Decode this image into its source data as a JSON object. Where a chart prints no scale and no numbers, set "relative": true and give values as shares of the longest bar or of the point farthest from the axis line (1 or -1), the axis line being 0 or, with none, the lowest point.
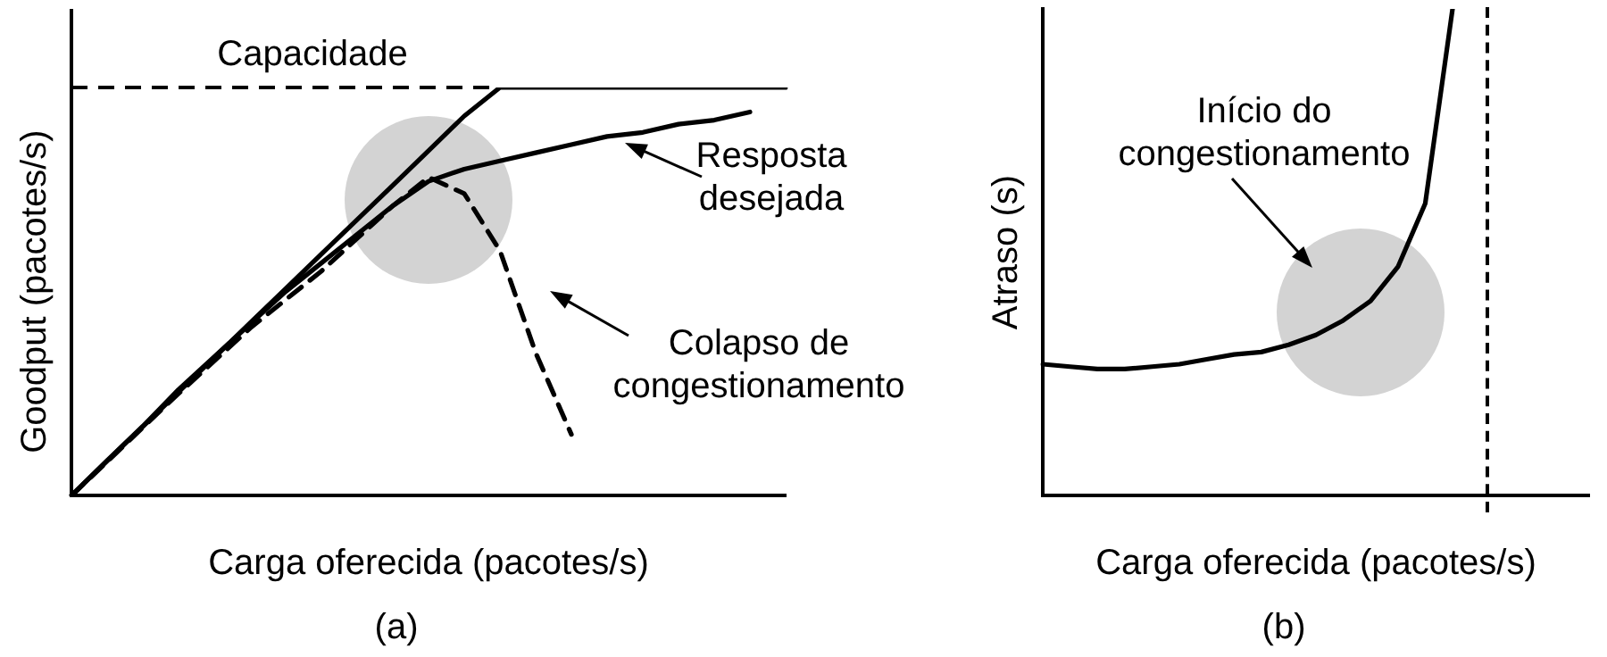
{
  "chart_data": [
    {
      "type": "line",
      "title": "(a)",
      "xlabel": "Carga oferecida (pacotes/s)",
      "ylabel": "Goodput (pacotes/s)",
      "relative": true,
      "grid": false,
      "legend": false,
      "marker": "none",
      "categories": [
        null,
        null,
        null,
        null,
        null,
        null,
        null,
        null,
        null,
        null,
        null,
        null,
        null,
        null,
        null,
        null,
        null,
        null,
        null,
        null,
        null
      ],
      "series": [
        {
          "color": "#000000",
          "values": [
            0,
            0.085,
            0.169,
            0.254,
            0.338,
            0.423,
            0.507,
            0.592,
            0.676,
            0.76,
            0.845,
            0.93,
            1,
            1,
            1,
            1,
            1,
            1,
            1,
            1,
            1
          ]
        },
        {
          "color": "#000000",
          "values": [
            0,
            0.086,
            0.17,
            0.26,
            0.34,
            0.42,
            0.5,
            0.57,
            0.64,
            0.71,
            0.77,
            0.8,
            0.82,
            0.84,
            0.86,
            0.88,
            0.89,
            0.91,
            0.92,
            0.94,
            null
          ]
        },
        {
          "color": "#000000",
          "line_style": "dashed",
          "values": [
            0,
            0.083,
            0.167,
            0.25,
            0.33,
            0.41,
            0.48,
            0.55,
            0.63,
            0.71,
            0.78,
            0.74,
            0.6,
            0.35,
            0.15,
            null,
            null,
            null,
            null,
            null,
            null
          ]
        }
      ],
      "ref_lines": [
        {
          "axis": "y",
          "value": 1,
          "label": "Capacidade",
          "line_style": "dashed"
        }
      ],
      "annotations": [
        "Resposta\ndesejada",
        "Colapso de\ncongestionamento"
      ]
    },
    {
      "type": "line",
      "title": "(b)",
      "xlabel": "Carga oferecida (pacotes/s)",
      "ylabel": "Atraso (s)",
      "relative": true,
      "grid": false,
      "legend": false,
      "marker": "none",
      "categories": [
        null,
        null,
        null,
        null,
        null,
        null,
        null,
        null,
        null,
        null,
        null,
        null,
        null,
        null,
        null,
        null,
        null,
        null,
        null,
        null,
        null
      ],
      "series": [
        {
          "color": "#000000",
          "values": [
            0.27,
            0.265,
            0.26,
            0.26,
            0.265,
            0.27,
            0.28,
            0.29,
            0.295,
            0.31,
            0.33,
            0.36,
            0.4,
            0.47,
            0.6,
            1,
            null,
            null,
            null,
            null,
            null
          ]
        }
      ],
      "annotations": [
        "Início do\ncongestionamento"
      ]
    }
  ]
}
